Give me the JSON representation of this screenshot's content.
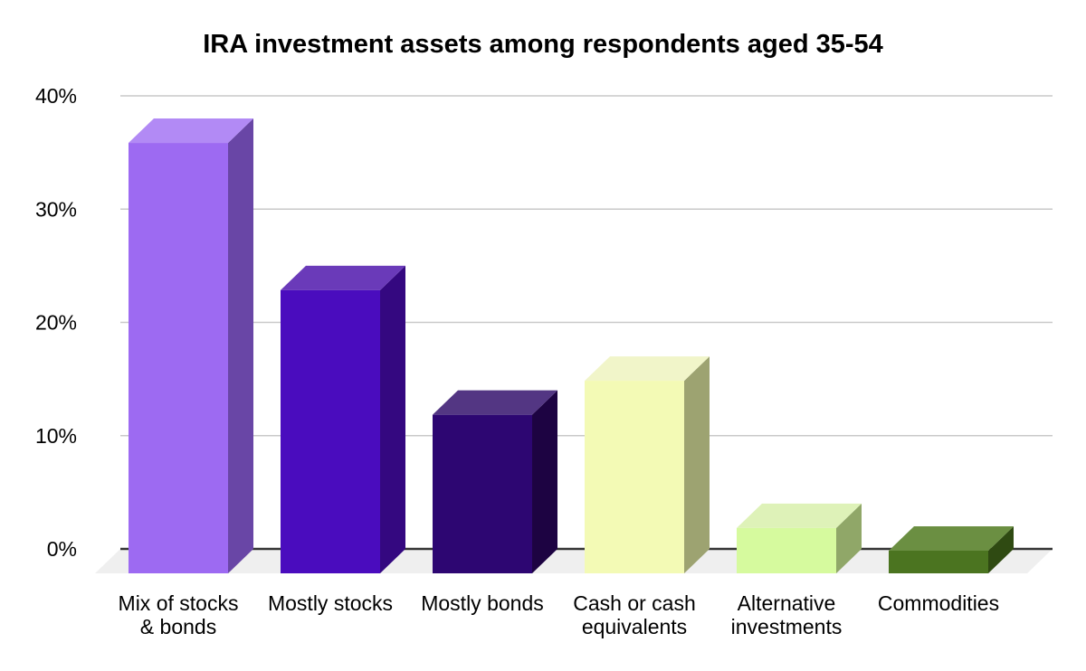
{
  "page": {
    "background_color": "#ffffff"
  },
  "chart_data": {
    "type": "bar",
    "variant": "3d-column",
    "title": "IRA investment assets among respondents aged 35-54",
    "categories": [
      "Mix of stocks\n& bonds",
      "Mostly stocks",
      "Mostly bonds",
      "Cash or cash\nequivalents",
      "Alternative\ninvestments",
      "Commodities"
    ],
    "values": [
      38,
      25,
      14,
      17,
      4,
      2
    ],
    "unit": "%",
    "xlabel": "",
    "ylabel": "",
    "ylim": [
      0,
      40
    ],
    "yticks": [
      0,
      10,
      20,
      30,
      40
    ],
    "ytick_labels": [
      "0%",
      "10%",
      "20%",
      "30%",
      "40%"
    ],
    "grid": true,
    "legend": "none",
    "bar_colors": [
      {
        "name": "light-purple",
        "front": "#9d6af2",
        "top": "#b28af5",
        "side": "#6946a6"
      },
      {
        "name": "violet",
        "front": "#4a0cbe",
        "top": "#6a3ab9",
        "side": "#340880"
      },
      {
        "name": "dark-indigo",
        "front": "#2d0672",
        "top": "#533683",
        "side": "#1d0342"
      },
      {
        "name": "pale-yellow",
        "front": "#f3fab5",
        "top": "#f1f5c9",
        "side": "#9da371"
      },
      {
        "name": "light-green",
        "front": "#d6fa9e",
        "top": "#def2b8",
        "side": "#90a768"
      },
      {
        "name": "olive-green",
        "front": "#4b7420",
        "top": "#6b8f42",
        "side": "#2f4a12"
      }
    ],
    "gridline_color": "#c9c9c9",
    "axis_line_color": "#333333",
    "floor_color": "#efefef",
    "text_color": "#000000"
  }
}
